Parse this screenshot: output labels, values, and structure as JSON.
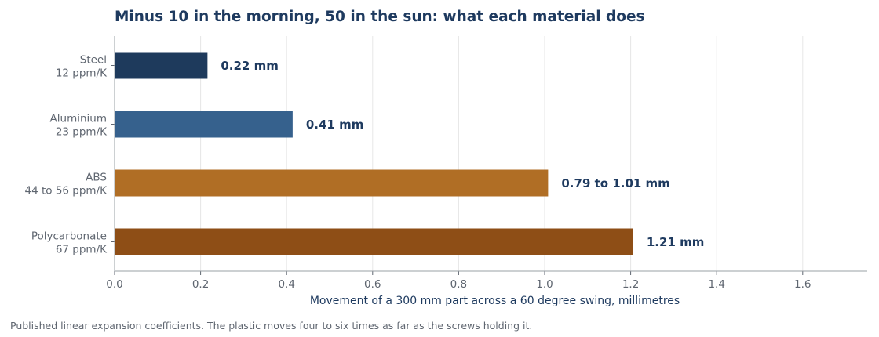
{
  "chart_data": {
    "type": "bar",
    "orientation": "horizontal",
    "title": "Minus 10 in the morning, 50 in the sun: what each material does",
    "xlabel": "Movement of a 300 mm part across a 60 degree swing, millimetres",
    "ylabel": "",
    "xlim": [
      0,
      1.75
    ],
    "xticks": [
      "0.0",
      "0.2",
      "0.4",
      "0.6",
      "0.8",
      "1.0",
      "1.2",
      "1.4",
      "1.6"
    ],
    "grid": "vertical",
    "legend": "none",
    "categories": [
      {
        "name": "Steel",
        "coefficient": "12 ppm/K"
      },
      {
        "name": "Aluminium",
        "coefficient": "23 ppm/K"
      },
      {
        "name": "ABS",
        "coefficient": "44 to 56 ppm/K"
      },
      {
        "name": "Polycarbonate",
        "coefficient": "67 ppm/K"
      }
    ],
    "values": [
      0.216,
      0.414,
      1.008,
      1.206
    ],
    "data_labels": [
      "0.22 mm",
      "0.41 mm",
      "0.79 to 1.01 mm",
      "1.21 mm"
    ],
    "colors": [
      "#1e3a5c",
      "#36618d",
      "#b06e25",
      "#8e4e16"
    ],
    "footnote": "Published linear expansion coefficients. The plastic moves four to six times as far as the screws holding it."
  }
}
